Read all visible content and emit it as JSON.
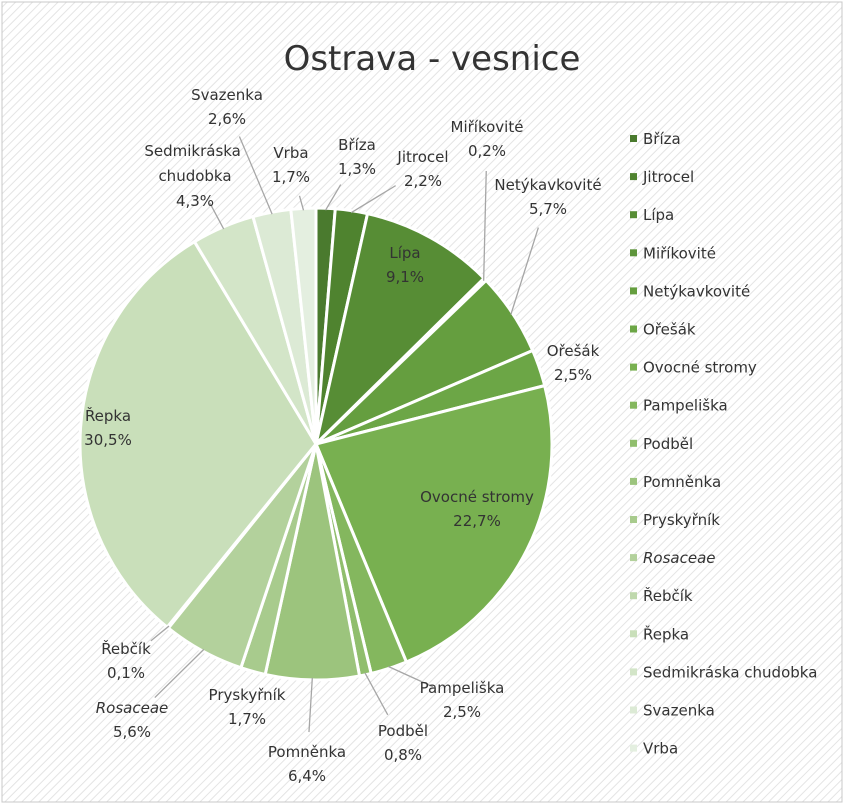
{
  "chart_data": {
    "type": "pie",
    "title": "Ostrava - vesnice",
    "categories": [
      "Bříza",
      "Jitrocel",
      "Lípa",
      "Miříkovité",
      "Netýkavkovité",
      "Ořešák",
      "Ovocné stromy",
      "Pampeliška",
      "Podběl",
      "Pomněnka",
      "Pryskyřník",
      "Rosaceae",
      "Řebčík",
      "Řepka",
      "Sedmikráska chudobka",
      "Svazenka",
      "Vrba"
    ],
    "values": [
      1.3,
      2.2,
      9.1,
      0.2,
      5.7,
      2.5,
      22.7,
      2.5,
      0.8,
      6.4,
      1.7,
      5.6,
      0.1,
      30.5,
      4.3,
      2.6,
      1.7
    ],
    "value_labels": [
      "1,3%",
      "2,2%",
      "9,1%",
      "0,2%",
      "5,7%",
      "2,5%",
      "22,7%",
      "2,5%",
      "0,8%",
      "6,4%",
      "1,7%",
      "5,6%",
      "0,1%",
      "30,5%",
      "4,3%",
      "2,6%",
      "1,7%"
    ],
    "colors": [
      "#4a7a2e",
      "#4f832f",
      "#578d35",
      "#5e953b",
      "#659e3f",
      "#6ca646",
      "#78b050",
      "#84b75e",
      "#90be6d",
      "#9cc47d",
      "#a8cb8d",
      "#b3d19c",
      "#bfd8ad",
      "#c9dfba",
      "#d3e5c8",
      "#dcead5",
      "#e4efe0"
    ],
    "italic": [
      false,
      false,
      false,
      false,
      false,
      false,
      false,
      false,
      false,
      false,
      false,
      true,
      false,
      false,
      false,
      false,
      false
    ],
    "legend": "right"
  }
}
